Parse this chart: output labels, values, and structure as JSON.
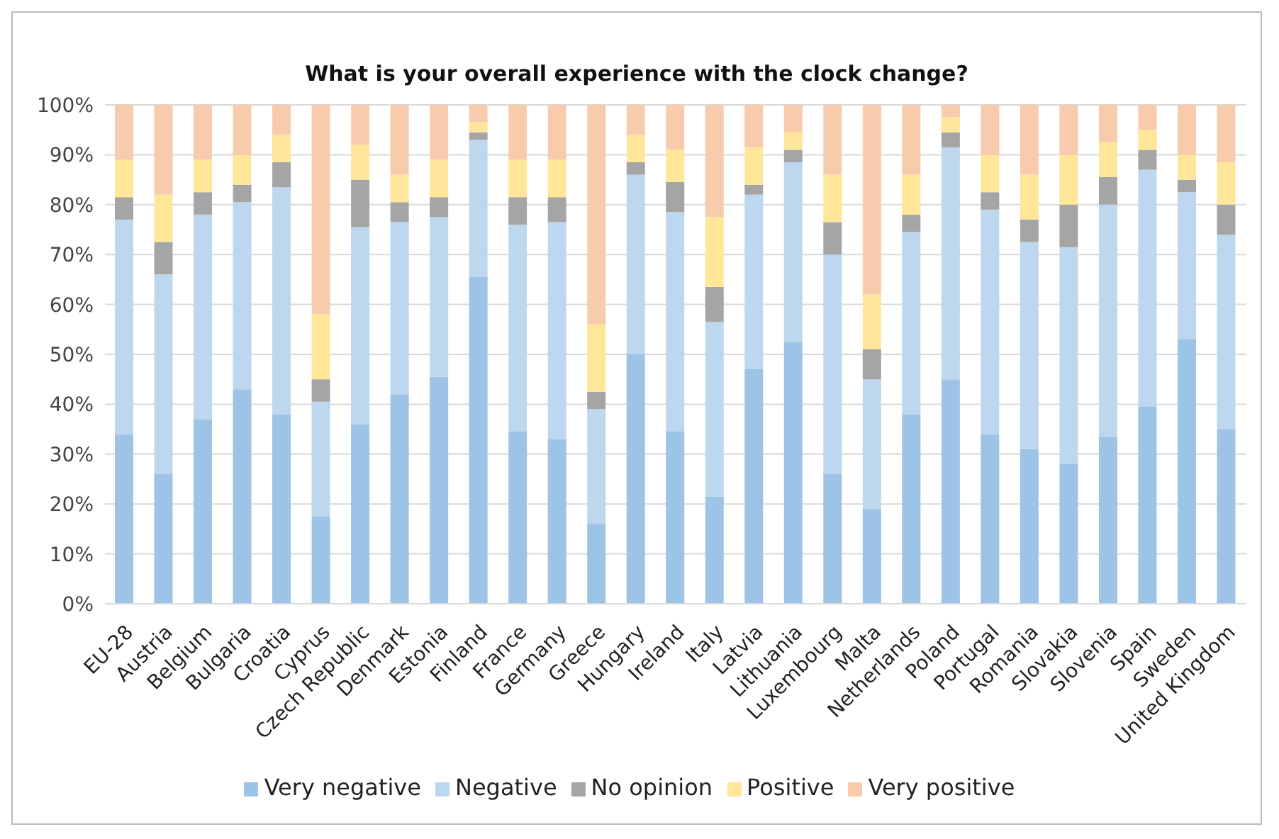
{
  "chart_data": {
    "type": "bar",
    "title": "What is your overall experience with the clock change?",
    "stacked": true,
    "categories": [
      "EU-28",
      "Austria",
      "Belgium",
      "Bulgaria",
      "Croatia",
      "Cyprus",
      "Czech Republic",
      "Denmark",
      "Estonia",
      "Finland",
      "France",
      "Germany",
      "Greece",
      "Hungary",
      "Ireland",
      "Italy",
      "Latvia",
      "Lithuania",
      "Luxembourg",
      "Malta",
      "Netherlands",
      "Poland",
      "Portugal",
      "Romania",
      "Slovakia",
      "Slovenia",
      "Spain",
      "Sweden",
      "United Kingdom"
    ],
    "series": [
      {
        "name": "Very negative",
        "color": "#9dc3e6",
        "values": [
          34,
          26,
          37,
          43,
          38,
          17.5,
          36,
          42,
          45.5,
          65.5,
          34.5,
          33,
          16,
          50,
          34.5,
          21.5,
          47,
          52.5,
          26,
          19,
          38,
          45,
          34,
          31,
          28,
          33.5,
          39.5,
          53,
          35
        ]
      },
      {
        "name": "Negative",
        "color": "#bdd7ee",
        "values": [
          43,
          40,
          41,
          37.5,
          45.5,
          23,
          39.5,
          34.5,
          32,
          27.5,
          41.5,
          43.5,
          23,
          36,
          44,
          35,
          35,
          36,
          44,
          26,
          36.5,
          46.5,
          45,
          41.5,
          43.5,
          46.5,
          47.5,
          29.5,
          39
        ]
      },
      {
        "name": "No opinion",
        "color": "#a5a5a5",
        "values": [
          4.5,
          6.5,
          4.5,
          3.5,
          5,
          4.5,
          9.5,
          4,
          4,
          1.5,
          5.5,
          5,
          3.5,
          2.5,
          6,
          7,
          2,
          2.5,
          6.5,
          6,
          3.5,
          3,
          3.5,
          4.5,
          8.5,
          5.5,
          4,
          2.5,
          6
        ]
      },
      {
        "name": "Positive",
        "color": "#ffe699",
        "values": [
          7.5,
          9.5,
          6.5,
          6,
          5.5,
          13,
          7,
          5.5,
          7.5,
          2,
          7.5,
          7.5,
          13.5,
          5.5,
          6.5,
          14,
          7.5,
          3.5,
          9.5,
          11,
          8,
          3,
          7.5,
          9,
          10,
          7,
          4,
          5,
          8.5
        ]
      },
      {
        "name": "Very positive",
        "color": "#f8cbad",
        "values": [
          11,
          18,
          11,
          10,
          6,
          42,
          8,
          14,
          11,
          3.5,
          11,
          11,
          44,
          6,
          9,
          22.5,
          8.5,
          5.5,
          14,
          38,
          14,
          2.5,
          10,
          14,
          10,
          7.5,
          5,
          10,
          11.5
        ]
      }
    ],
    "ylim": [
      0,
      100
    ],
    "yticks": [
      {
        "value": 0,
        "label": "0%"
      },
      {
        "value": 10,
        "label": "10%"
      },
      {
        "value": 20,
        "label": "20%"
      },
      {
        "value": 30,
        "label": "30%"
      },
      {
        "value": 40,
        "label": "40%"
      },
      {
        "value": 50,
        "label": "50%"
      },
      {
        "value": 60,
        "label": "60%"
      },
      {
        "value": 70,
        "label": "70%"
      },
      {
        "value": 80,
        "label": "80%"
      },
      {
        "value": 90,
        "label": "90%"
      },
      {
        "value": 100,
        "label": "100%"
      }
    ],
    "grid": "y",
    "legend": "bottom"
  }
}
